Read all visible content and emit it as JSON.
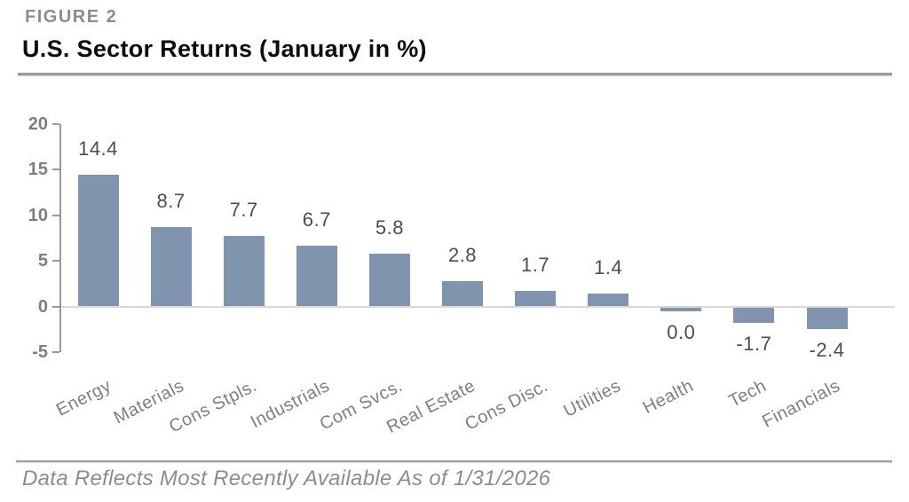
{
  "header": {
    "figure_label": "FIGURE 2",
    "title": "U.S. Sector Returns (January in %)"
  },
  "footer": {
    "note": "Data Reflects Most Recently Available As of 1/31/2026"
  },
  "chart_data": {
    "type": "bar",
    "title": "U.S. Sector Returns (January in %)",
    "categories": [
      "Energy",
      "Materials",
      "Cons Stpls.",
      "Industrials",
      "Com Svcs.",
      "Real Estate",
      "Cons Disc.",
      "Utilities",
      "Health",
      "Tech",
      "Financials"
    ],
    "values": [
      14.4,
      8.7,
      7.7,
      6.7,
      5.8,
      2.8,
      1.7,
      1.4,
      0.0,
      -1.7,
      -2.4
    ],
    "value_labels": [
      "14.4",
      "8.7",
      "7.7",
      "6.7",
      "5.8",
      "2.8",
      "1.7",
      "1.4",
      "0.0",
      "-1.7",
      "-2.4"
    ],
    "xlabel": "",
    "ylabel": "",
    "ylim": [
      -5,
      20
    ],
    "yticks": [
      20,
      15,
      10,
      5,
      0,
      -5
    ],
    "grid": false,
    "legend": false,
    "colors": {
      "bar": "#8194AE",
      "axis": "#999999",
      "zero_line": "#d9d9d9",
      "value_label": "#4d4d4d",
      "tick_label": "#7f7f7f"
    }
  }
}
